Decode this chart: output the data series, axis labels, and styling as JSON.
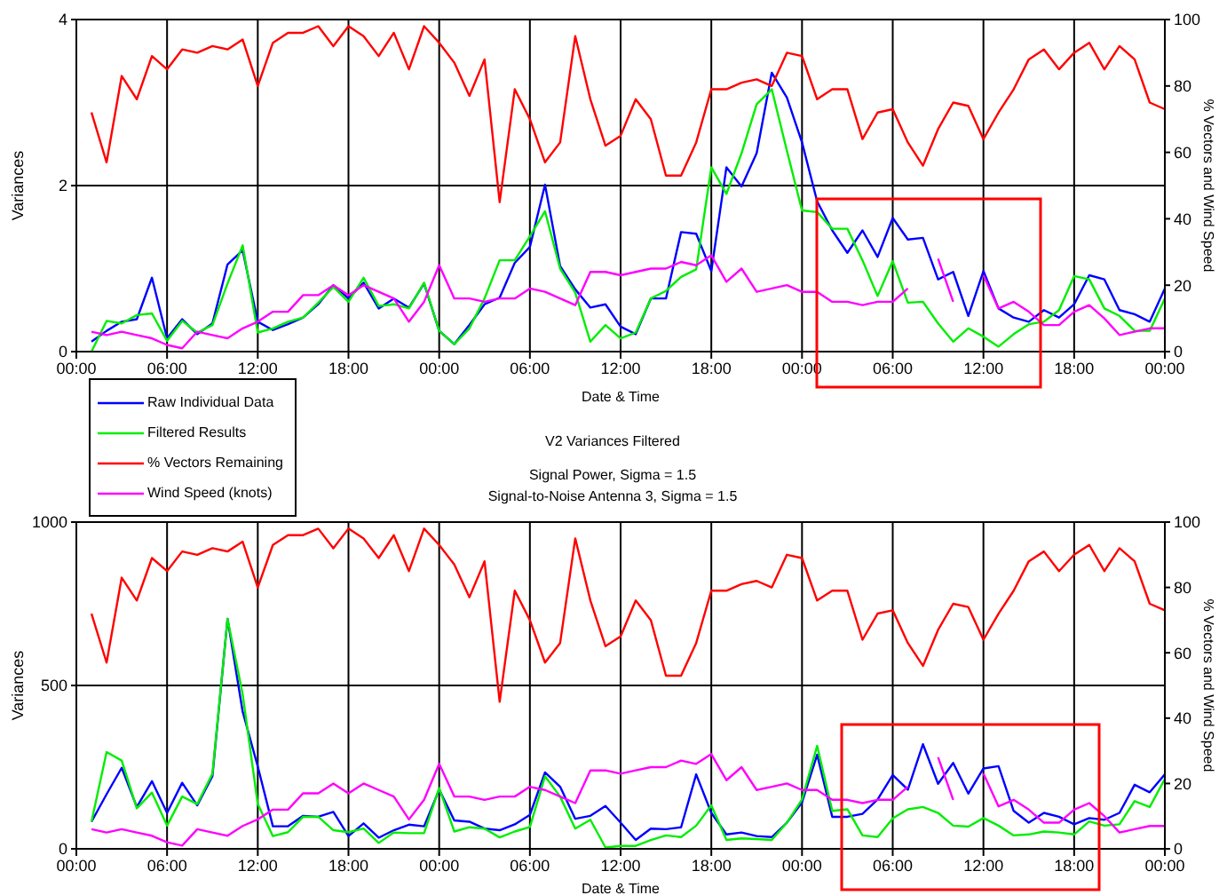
{
  "chart_data": [
    {
      "type": "line",
      "xlabel": "Date & Time",
      "ylabel": "Variances",
      "y2label": "% Vectors and Wind Speed",
      "categories": [
        "00:00",
        null,
        null,
        null,
        null,
        null,
        "06:00",
        null,
        null,
        null,
        null,
        null,
        "12:00",
        null,
        null,
        null,
        null,
        null,
        "18:00",
        null,
        null,
        null,
        null,
        null,
        "00:00",
        null,
        null,
        null,
        null,
        null,
        "06:00",
        null,
        null,
        null,
        null,
        null,
        "12:00",
        null,
        null,
        null,
        null,
        null,
        "18:00",
        null,
        null,
        null,
        null,
        null,
        "00:00",
        null,
        null,
        null,
        null,
        null,
        "06:00",
        null,
        null,
        null,
        null,
        null,
        "12:00",
        null,
        null,
        null,
        null,
        null,
        "18:00",
        null,
        null,
        null,
        null,
        null,
        "00:00"
      ],
      "ylim": [
        0,
        4
      ],
      "yticks": [
        0,
        2,
        4
      ],
      "y2lim": [
        0,
        100
      ],
      "y2ticks": [
        0,
        20,
        40,
        60,
        80,
        100
      ],
      "grid": true,
      "legend": "bottom left",
      "marker": "none",
      "line_style": "solid",
      "series": [
        {
          "name": "Raw Individual Data",
          "color": "#0000ff",
          "values": [
            null,
            0.12,
            0.25,
            0.36,
            0.39,
            0.89,
            0.16,
            0.39,
            0.21,
            0.34,
            1.05,
            1.22,
            0.36,
            0.26,
            0.33,
            0.41,
            0.57,
            0.8,
            0.64,
            0.83,
            0.52,
            0.64,
            0.53,
            0.82,
            0.25,
            0.09,
            0.32,
            0.57,
            0.65,
            1.07,
            1.26,
            2.01,
            1.03,
            0.75,
            0.53,
            0.57,
            0.3,
            0.21,
            0.64,
            0.64,
            1.44,
            1.42,
            0.97,
            2.22,
            1.99,
            2.39,
            3.36,
            3.06,
            2.52,
            1.81,
            1.46,
            1.19,
            1.46,
            1.14,
            1.61,
            1.35,
            1.37,
            0.87,
            0.96,
            0.43,
            0.97,
            0.52,
            0.41,
            0.36,
            0.5,
            0.41,
            0.57,
            0.92,
            0.87,
            0.5,
            0.45,
            0.36,
            0.76
          ]
        },
        {
          "name": "Filtered Results",
          "color": "#00ee00",
          "values": [
            null,
            0,
            0.37,
            0.34,
            0.44,
            0.46,
            0.13,
            0.37,
            0.23,
            0.32,
            0.82,
            1.28,
            0.23,
            0.28,
            0.36,
            0.41,
            0.59,
            0.78,
            0.6,
            0.89,
            0.55,
            0.57,
            0.52,
            0.83,
            0.25,
            0.09,
            0.28,
            0.64,
            1.1,
            1.1,
            1.39,
            1.69,
            1.0,
            0.71,
            0.12,
            0.32,
            0.16,
            0.23,
            0.64,
            0.73,
            0.9,
            0.99,
            2.22,
            1.9,
            2.39,
            2.98,
            3.16,
            2.42,
            1.7,
            1.68,
            1.48,
            1.48,
            1.1,
            0.67,
            1.09,
            0.59,
            0.6,
            0.34,
            0.12,
            0.28,
            0.18,
            0.06,
            0.21,
            0.33,
            0.36,
            0.5,
            0.91,
            0.87,
            0.52,
            0.43,
            0.25,
            0.25,
            0.64
          ]
        },
        {
          "name": "% Vectors Remaining",
          "color": "#ff0000",
          "axis": "y2",
          "values": [
            null,
            72,
            57,
            83,
            76,
            89,
            85,
            91,
            90,
            92,
            91,
            94,
            80,
            93,
            96,
            96,
            98,
            92,
            98,
            95,
            89,
            96,
            85,
            98,
            93,
            87,
            77,
            88,
            45,
            79,
            70,
            57,
            63,
            95,
            76,
            62,
            65,
            76,
            70,
            53,
            53,
            63,
            79,
            79,
            81,
            82,
            80,
            90,
            89,
            76,
            79,
            79,
            64,
            72,
            73,
            63,
            56,
            67,
            75,
            74,
            64,
            72,
            79,
            88,
            91,
            85,
            90,
            93,
            85,
            92,
            88,
            75,
            73
          ]
        },
        {
          "name": "Wind Speed (knots)",
          "color": "#ff00ff",
          "axis": "y2",
          "values": [
            null,
            6,
            5,
            6,
            5,
            4,
            2,
            1,
            6,
            5,
            4,
            7,
            9,
            12,
            12,
            17,
            17,
            20,
            17,
            20,
            18,
            16,
            9,
            15,
            26,
            16,
            16,
            15,
            16,
            16,
            19,
            18,
            16,
            14,
            24,
            24,
            23,
            24,
            25,
            25,
            27,
            26,
            29,
            21,
            25,
            18,
            19,
            20,
            18,
            18,
            15,
            15,
            14,
            15,
            15,
            19,
            null,
            28,
            15,
            null,
            23,
            13,
            15,
            12,
            8,
            8,
            12,
            14,
            10,
            5,
            6,
            7,
            7
          ]
        }
      ]
    },
    {
      "type": "line",
      "title": "V2 Variances Filtered",
      "subtitle": "Signal Power, Sigma = 1.5\nSignal-to-Noise Antenna 3, Sigma = 1.5",
      "xlabel": "Date & Time",
      "ylabel": "Variances",
      "y2label": "% Vectors and Wind Speed",
      "categories": [
        "00:00",
        null,
        null,
        null,
        null,
        null,
        "06:00",
        null,
        null,
        null,
        null,
        null,
        "12:00",
        null,
        null,
        null,
        null,
        null,
        "18:00",
        null,
        null,
        null,
        null,
        null,
        "00:00",
        null,
        null,
        null,
        null,
        null,
        "06:00",
        null,
        null,
        null,
        null,
        null,
        "12:00",
        null,
        null,
        null,
        null,
        null,
        "18:00",
        null,
        null,
        null,
        null,
        null,
        "00:00",
        null,
        null,
        null,
        null,
        null,
        "06:00",
        null,
        null,
        null,
        null,
        null,
        "12:00",
        null,
        null,
        null,
        null,
        null,
        "18:00",
        null,
        null,
        null,
        null,
        null,
        "00:00"
      ],
      "ylim": [
        0,
        1000
      ],
      "yticks": [
        0,
        500,
        1000
      ],
      "y2lim": [
        0,
        100
      ],
      "y2ticks": [
        0,
        20,
        40,
        60,
        80,
        100
      ],
      "grid": true,
      "marker": "none",
      "line_style": "solid",
      "series": [
        {
          "color": "#0000ff",
          "values": [
            null,
            83,
            167,
            248,
            128,
            207,
            110,
            202,
            133,
            222,
            704,
            420,
            252,
            69,
            69,
            101,
            98,
            113,
            39,
            78,
            34,
            57,
            74,
            69,
            181,
            87,
            83,
            62,
            57,
            75,
            104,
            234,
            190,
            92,
            101,
            131,
            80,
            27,
            62,
            60,
            66,
            228,
            110,
            44,
            50,
            39,
            36,
            80,
            142,
            288,
            98,
            98,
            107,
            151,
            226,
            181,
            320,
            199,
            263,
            169,
            246,
            253,
            116,
            80,
            110,
            98,
            75,
            94,
            89,
            110,
            196,
            173,
            228
          ]
        },
        {
          "color": "#00ee00",
          "values": [
            null,
            83,
            296,
            270,
            124,
            172,
            71,
            160,
            137,
            230,
            704,
            473,
            137,
            39,
            51,
            98,
            98,
            57,
            51,
            62,
            18,
            50,
            48,
            48,
            186,
            53,
            66,
            62,
            35,
            53,
            67,
            222,
            160,
            62,
            89,
            4,
            9,
            9,
            27,
            41,
            36,
            71,
            133,
            27,
            32,
            30,
            27,
            80,
            151,
            315,
            116,
            121,
            41,
            36,
            93,
            121,
            128,
            110,
            71,
            68,
            94,
            71,
            41,
            44,
            53,
            50,
            44,
            84,
            71,
            75,
            146,
            128,
            214
          ]
        },
        {
          "color": "#ff0000",
          "axis": "y2",
          "values": [
            null,
            72,
            57,
            83,
            76,
            89,
            85,
            91,
            90,
            92,
            91,
            94,
            80,
            93,
            96,
            96,
            98,
            92,
            98,
            95,
            89,
            96,
            85,
            98,
            93,
            87,
            77,
            88,
            45,
            79,
            70,
            57,
            63,
            95,
            76,
            62,
            65,
            76,
            70,
            53,
            53,
            63,
            79,
            79,
            81,
            82,
            80,
            90,
            89,
            76,
            79,
            79,
            64,
            72,
            73,
            63,
            56,
            67,
            75,
            74,
            64,
            72,
            79,
            88,
            91,
            85,
            90,
            93,
            85,
            92,
            88,
            75,
            73
          ]
        },
        {
          "color": "#ff00ff",
          "axis": "y2",
          "values": [
            null,
            6,
            5,
            6,
            5,
            4,
            2,
            1,
            6,
            5,
            4,
            7,
            9,
            12,
            12,
            17,
            17,
            20,
            17,
            20,
            18,
            16,
            9,
            15,
            26,
            16,
            16,
            15,
            16,
            16,
            19,
            18,
            16,
            14,
            24,
            24,
            23,
            24,
            25,
            25,
            27,
            26,
            29,
            21,
            25,
            18,
            19,
            20,
            18,
            18,
            15,
            15,
            14,
            15,
            15,
            19,
            null,
            28,
            15,
            null,
            23,
            13,
            15,
            12,
            8,
            8,
            12,
            14,
            10,
            5,
            6,
            7,
            7
          ]
        }
      ]
    }
  ]
}
